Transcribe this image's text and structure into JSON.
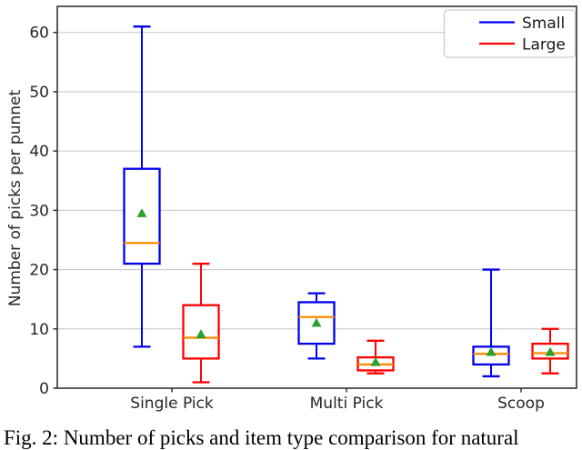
{
  "figure": {
    "caption": "Fig. 2: Number of picks and item type comparison for natural"
  },
  "chart_data": {
    "type": "boxplot",
    "title": "",
    "xlabel": "",
    "ylabel": "Number of picks per punnet",
    "categories": [
      "Single Pick",
      "Multi Pick",
      "Scoop"
    ],
    "yticks": [
      0,
      10,
      20,
      30,
      40,
      50,
      60
    ],
    "ylim": [
      0,
      64.4
    ],
    "grid": true,
    "legend_position": "upper right",
    "colors": {
      "small": "#0000ee",
      "large": "#ff0000",
      "median": "#ff8c00",
      "mean_marker": "#2ca02c",
      "grid": "#c9c9c9",
      "axis": "#333333",
      "text": "#262626",
      "legend_border": "#cccccc"
    },
    "series": [
      {
        "name": "Small",
        "color": "#0000ee",
        "boxes": [
          {
            "category": "Single Pick",
            "whislo": 7,
            "q1": 21,
            "med": 24.5,
            "q3": 37,
            "whishi": 61,
            "mean": 29.5
          },
          {
            "category": "Multi Pick",
            "whislo": 5,
            "q1": 7.5,
            "med": 12,
            "q3": 14.5,
            "whishi": 16,
            "mean": 11
          },
          {
            "category": "Scoop",
            "whislo": 2,
            "q1": 4,
            "med": 5.8,
            "q3": 7,
            "whishi": 20,
            "mean": 6.1
          }
        ]
      },
      {
        "name": "Large",
        "color": "#ff0000",
        "boxes": [
          {
            "category": "Single Pick",
            "whislo": 1,
            "q1": 5,
            "med": 8.5,
            "q3": 14,
            "whishi": 21,
            "mean": 9.1
          },
          {
            "category": "Multi Pick",
            "whislo": 2.5,
            "q1": 3,
            "med": 4,
            "q3": 5.2,
            "whishi": 8,
            "mean": 4.4
          },
          {
            "category": "Scoop",
            "whislo": 2.5,
            "q1": 5,
            "med": 5.9,
            "q3": 7.5,
            "whishi": 10,
            "mean": 6.1
          }
        ]
      }
    ]
  }
}
